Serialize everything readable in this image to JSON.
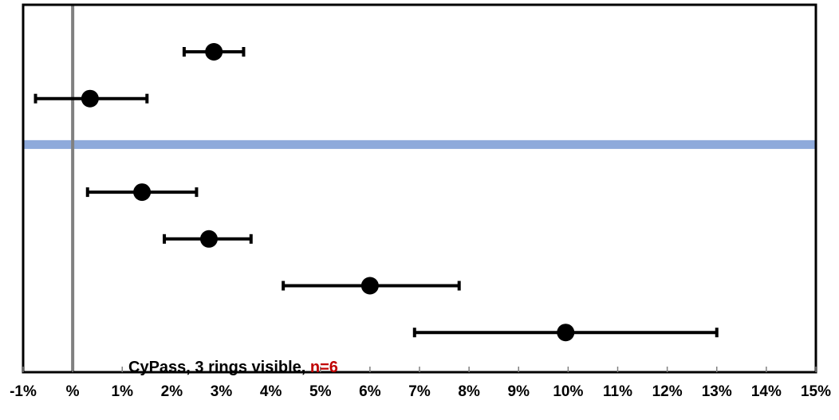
{
  "chart_data": {
    "type": "scatter",
    "title": "",
    "xlabel": "",
    "ylabel": "",
    "xlim": [
      -1,
      15
    ],
    "x_unit": "%",
    "x_tick_labels": [
      "-1%",
      "%",
      "1%",
      "2%",
      "3%",
      "4%",
      "5%",
      "6%",
      "7%",
      "8%",
      "9%",
      "10%",
      "11%",
      "12%",
      "13%",
      "14%",
      "15%"
    ],
    "reference_line_x": 0,
    "separator_after_row": 2,
    "grid": false,
    "points": [
      {
        "value": 2.85,
        "low": 2.25,
        "high": 3.45
      },
      {
        "value": 0.35,
        "low": -0.75,
        "high": 1.5
      },
      {
        "value": 1.4,
        "low": 0.3,
        "high": 2.5
      },
      {
        "value": 2.75,
        "low": 1.85,
        "high": 3.6
      },
      {
        "value": 6.0,
        "low": 4.25,
        "high": 7.8
      },
      {
        "value": 9.95,
        "low": 6.9,
        "high": 13.0
      }
    ],
    "annotation": {
      "text_main": "CyPass, 3 rings visible, ",
      "text_highlight": "n=6",
      "highlight_color": "#c00000"
    },
    "colors": {
      "points": "#000000",
      "reference_line": "#808080",
      "separator": "#8eaadb",
      "frame": "#000000"
    }
  }
}
